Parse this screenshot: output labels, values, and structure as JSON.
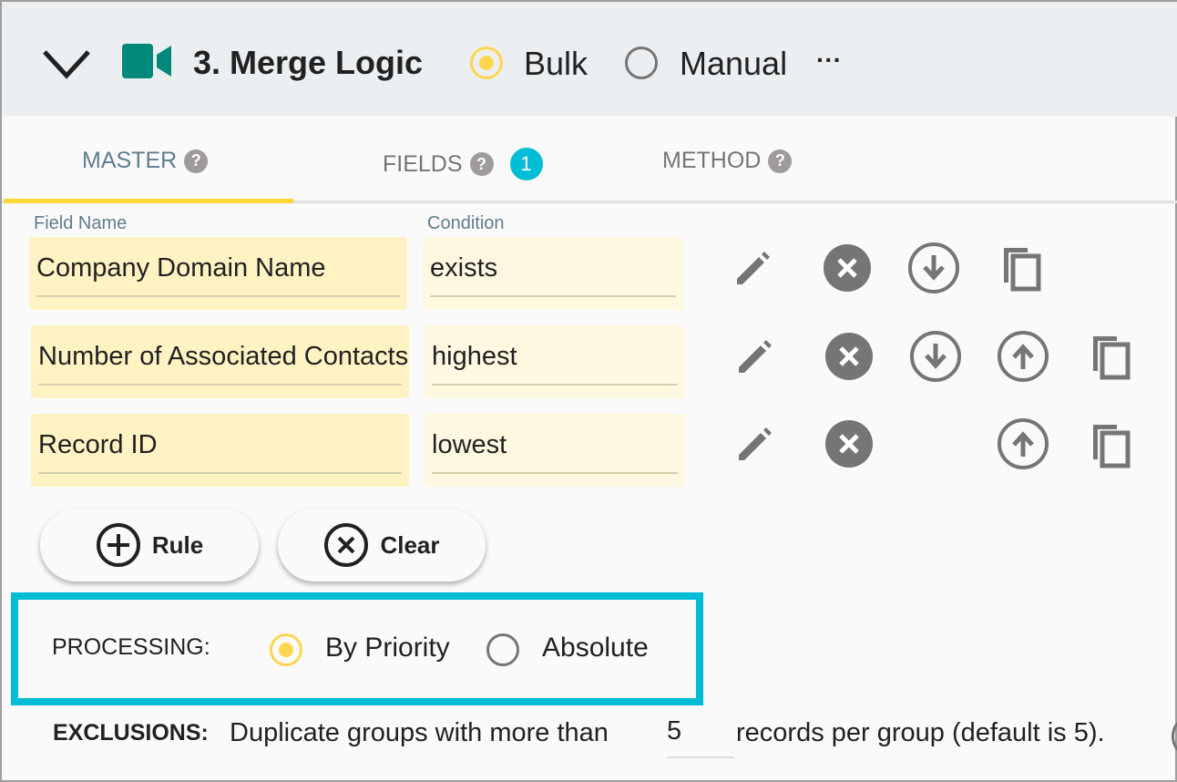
{
  "header": {
    "title": "3. Merge Logic",
    "mode_options": [
      {
        "label": "Bulk",
        "selected": true
      },
      {
        "label": "Manual",
        "selected": false
      }
    ],
    "more_label": "···"
  },
  "tabs": [
    {
      "label": "MASTER",
      "active": true
    },
    {
      "label": "FIELDS",
      "badge": "1"
    },
    {
      "label": "METHOD"
    }
  ],
  "columns": {
    "field_name": "Field Name",
    "condition": "Condition"
  },
  "rules": [
    {
      "field": "Company Domain Name",
      "condition": "exists",
      "actions": [
        "edit",
        "delete",
        "move-down",
        "copy"
      ]
    },
    {
      "field": "Number of Associated Contacts",
      "condition": "highest",
      "actions": [
        "edit",
        "delete",
        "move-down",
        "move-up",
        "copy"
      ]
    },
    {
      "field": "Record ID",
      "condition": "lowest",
      "actions": [
        "edit",
        "delete",
        "move-up",
        "copy"
      ]
    }
  ],
  "buttons": {
    "rule": "Rule",
    "clear": "Clear"
  },
  "processing": {
    "label": "PROCESSING:",
    "options": [
      {
        "label": "By Priority",
        "selected": true
      },
      {
        "label": "Absolute",
        "selected": false
      }
    ]
  },
  "exclusions": {
    "label": "EXCLUSIONS:",
    "prefix": "Duplicate groups with more than",
    "value": "5",
    "suffix": "records per group (default is 5)."
  },
  "colors": {
    "accent": "#ffd54f",
    "highlight": "#00bcd4",
    "icon": "#00897b"
  }
}
